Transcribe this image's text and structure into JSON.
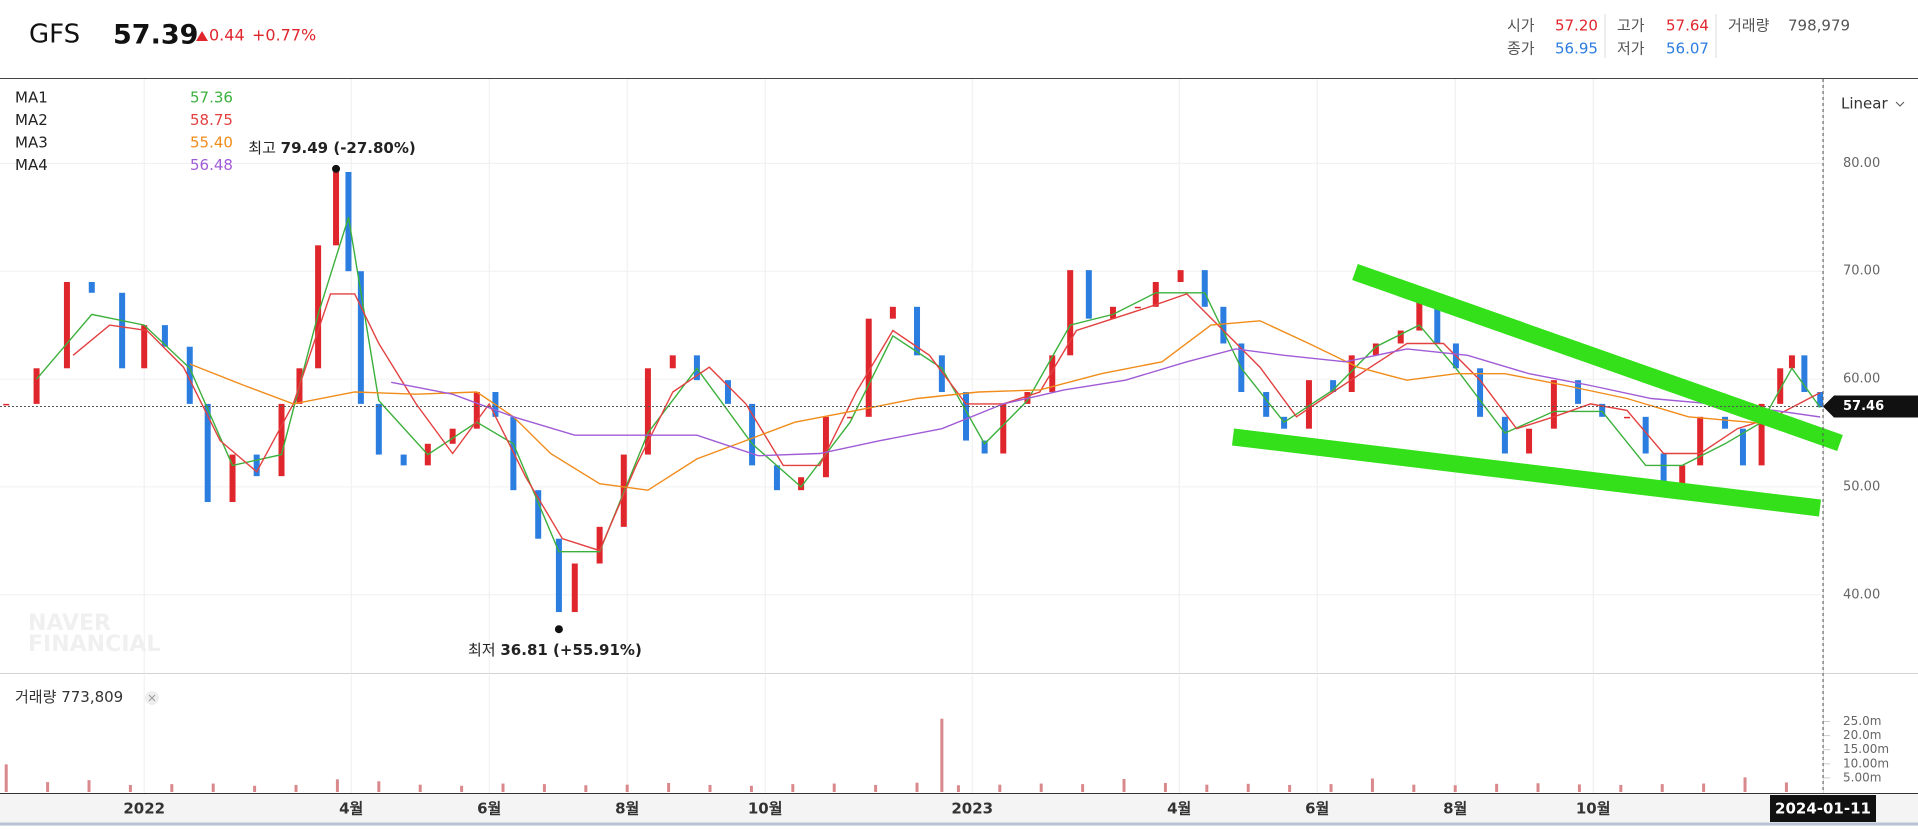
{
  "header": {
    "symbol": "GFS",
    "price": "57.39",
    "change": "0.44",
    "change_pct": "+0.77%",
    "stats": [
      {
        "label": "시가",
        "value": "57.20"
      },
      {
        "label": "고가",
        "value": "57.64"
      },
      {
        "label": "거래량",
        "value": "798,979"
      },
      {
        "label": "종가",
        "value": "56.95"
      },
      {
        "label": "저가",
        "value": "56.07"
      }
    ]
  },
  "chart_data": [
    {
      "type": "stock",
      "scale": "Linear",
      "grid": true,
      "watermark": [
        "NAVER",
        "FINANCIAL"
      ],
      "xlim": [
        -2.09,
        24.33
      ],
      "xticks": [
        0,
        3,
        5,
        7,
        9,
        12,
        15,
        17,
        19,
        21
      ],
      "ylim": [
        32.75,
        87.82
      ],
      "yticks": [
        {
          "value": 40,
          "label": "40.00"
        },
        {
          "value": 50,
          "label": "50.00"
        },
        {
          "value": 60,
          "label": "60.00"
        },
        {
          "value": 70,
          "label": "70.00"
        },
        {
          "value": 80,
          "label": "80.00"
        }
      ],
      "current_price": 57.46,
      "cursor": {
        "x": 24.33,
        "label": "2024-01-11"
      },
      "extremes": [
        {
          "label": "최고",
          "x": 2.78,
          "value": 79.49,
          "value_label": "79.49 (-27.80%)"
        },
        {
          "label": "최저",
          "x": 6.01,
          "value": 36.81,
          "value_label": "36.81 (+55.91%)"
        }
      ],
      "series": [
        {
          "type": "candles",
          "up_color": "#e0262d",
          "down_color": "#2b7de0",
          "x": [
            -2.0,
            -1.56,
            -1.12,
            -0.76,
            -0.32,
            0,
            0.3,
            0.66,
            0.92,
            1.28,
            1.63,
            1.99,
            2.25,
            2.52,
            2.78,
            2.96,
            3.14,
            3.4,
            3.76,
            4.11,
            4.47,
            4.82,
            5.09,
            5.35,
            5.71,
            6.01,
            6.24,
            6.6,
            6.95,
            7.3,
            7.66,
            8.01,
            8.46,
            8.81,
            9.17,
            9.52,
            9.88,
            10.23,
            10.5,
            10.85,
            11.2,
            11.56,
            11.91,
            12.18,
            12.45,
            12.8,
            13.16,
            13.42,
            13.69,
            14.04,
            14.4,
            14.66,
            15.02,
            15.37,
            15.64,
            15.9,
            16.26,
            16.52,
            16.88,
            17.23,
            17.5,
            17.85,
            18.21,
            18.48,
            18.74,
            19.01,
            19.36,
            19.72,
            20.07,
            20.43,
            20.78,
            21.13,
            21.49,
            21.76,
            22.02,
            22.29,
            22.55,
            22.91,
            23.17,
            23.44,
            23.71,
            23.88,
            24.06,
            24.29
          ],
          "values": [
            57.7,
            61,
            69,
            68,
            61,
            65,
            63,
            57.7,
            48.6,
            53,
            51,
            57.7,
            61,
            72.4,
            79.2,
            70,
            57.7,
            53,
            52,
            54,
            55.4,
            58.8,
            56.5,
            49.7,
            45.2,
            38.4,
            42.9,
            46.3,
            53,
            61,
            62.2,
            59.9,
            57.7,
            52,
            49.7,
            50.9,
            56.5,
            56.5,
            65.6,
            66.7,
            62.2,
            58.8,
            54.3,
            53.1,
            57.7,
            58.8,
            62.2,
            70.1,
            65.6,
            66.7,
            66.7,
            69,
            70.1,
            66.7,
            63.3,
            58.8,
            56.5,
            55.4,
            59.9,
            58.8,
            62.2,
            63.3,
            64.5,
            67.9,
            63.3,
            61,
            56.5,
            53.1,
            55.4,
            59.9,
            57.7,
            56.5,
            56.5,
            53.1,
            49.7,
            52,
            56.5,
            55.4,
            52,
            57.7,
            61,
            62.2,
            58.8,
            57.39
          ]
        },
        {
          "type": "line",
          "name": "MA1",
          "color": "#3cb03c",
          "last_label": "57.36",
          "x": [
            -1.56,
            -0.76,
            0,
            0.66,
            1.28,
            1.99,
            2.52,
            2.96,
            3.4,
            4.11,
            4.82,
            5.35,
            6.01,
            6.6,
            7.3,
            8.01,
            8.81,
            9.52,
            10.23,
            10.85,
            11.56,
            12.18,
            12.8,
            13.42,
            14.04,
            14.66,
            15.37,
            15.9,
            16.52,
            17.23,
            17.85,
            18.48,
            19.01,
            19.72,
            20.43,
            21.13,
            21.76,
            22.29,
            22.91,
            23.44,
            23.88,
            24.29
          ],
          "values": [
            60,
            66,
            65,
            61,
            52,
            53,
            66,
            75,
            58,
            53,
            56,
            54,
            44,
            44,
            55,
            61,
            54,
            50,
            56,
            64,
            61,
            54,
            58,
            65,
            66,
            68,
            68,
            61,
            56,
            59,
            63,
            65,
            61,
            55,
            57,
            57,
            52,
            52,
            54,
            56,
            61,
            57.36
          ]
        },
        {
          "type": "line",
          "name": "MA2",
          "color": "#e34040",
          "last_label": "58.75",
          "x": [
            -1.03,
            -0.5,
            0.04,
            0.57,
            1.1,
            1.63,
            2.16,
            2.7,
            3.05,
            3.4,
            3.94,
            4.47,
            5.0,
            5.53,
            6.06,
            6.6,
            7.13,
            7.66,
            8.19,
            8.72,
            9.26,
            9.79,
            10.32,
            10.85,
            11.38,
            11.91,
            12.45,
            12.98,
            13.51,
            14.04,
            14.57,
            15.11,
            15.64,
            16.17,
            16.7,
            17.23,
            17.77,
            18.3,
            18.83,
            19.36,
            19.89,
            20.43,
            20.96,
            21.49,
            22.02,
            22.55,
            23.09,
            23.62,
            24.29
          ],
          "values": [
            62.2,
            65.0,
            64.5,
            61.1,
            54.3,
            51.4,
            57.7,
            67.9,
            67.9,
            63.3,
            57.7,
            53.1,
            57.7,
            50.9,
            45.2,
            44.1,
            52.0,
            58.8,
            61.1,
            57.7,
            52.0,
            52.0,
            58.8,
            64.5,
            62.2,
            57.7,
            57.7,
            58.8,
            64.5,
            65.6,
            66.7,
            67.9,
            64.5,
            61.1,
            56.5,
            58.8,
            61.1,
            63.3,
            63.3,
            59.9,
            55.4,
            56.5,
            57.7,
            57.1,
            53.1,
            53.1,
            55.4,
            56.5,
            58.75
          ]
        },
        {
          "type": "line",
          "name": "MA3",
          "color": "#f08c1a",
          "last_label": "55.40",
          "x": [
            0.66,
            1.45,
            2.16,
            3.05,
            3.94,
            4.82,
            5.35,
            5.89,
            6.6,
            7.3,
            8.01,
            8.72,
            9.43,
            10.32,
            11.2,
            12.09,
            12.98,
            13.87,
            14.75,
            15.46,
            16.17,
            16.88,
            17.59,
            18.3,
            19.01,
            19.72,
            20.6,
            21.49,
            22.38,
            23.26,
            24.29
          ],
          "values": [
            61.4,
            59.4,
            57.7,
            58.8,
            58.6,
            58.8,
            56.5,
            53.1,
            50.3,
            49.7,
            52.6,
            54.3,
            56.0,
            57.1,
            58.2,
            58.8,
            59.0,
            60.5,
            61.6,
            65.0,
            65.4,
            63.3,
            61.1,
            59.9,
            60.5,
            60.5,
            59.4,
            58.2,
            56.5,
            56.0,
            55.4
          ]
        },
        {
          "type": "line",
          "name": "MA4",
          "color": "#a05cd6",
          "last_label": "56.48",
          "x": [
            3.58,
            4.47,
            5.35,
            6.24,
            7.13,
            8.01,
            8.9,
            9.79,
            10.67,
            11.56,
            12.45,
            13.33,
            14.22,
            15.11,
            15.82,
            16.52,
            17.41,
            18.3,
            19.18,
            20.07,
            20.96,
            21.84,
            22.73,
            23.62,
            24.29
          ],
          "values": [
            59.7,
            58.6,
            56.5,
            54.8,
            54.8,
            54.8,
            52.9,
            53.1,
            54.3,
            55.4,
            57.7,
            59.0,
            59.9,
            61.6,
            62.8,
            62.2,
            61.6,
            62.8,
            62.2,
            60.5,
            59.4,
            58.2,
            57.7,
            57.1,
            56.48
          ]
        }
      ]
    },
    {
      "type": "bar",
      "title": "거래량",
      "last_label": "773,809",
      "color": "#d9898c",
      "xlim": [
        -2.09,
        24.33
      ],
      "xticks": [
        {
          "value": 0,
          "label": "2022"
        },
        {
          "value": 3,
          "label": "4월"
        },
        {
          "value": 5,
          "label": "6월"
        },
        {
          "value": 7,
          "label": "8월"
        },
        {
          "value": 9,
          "label": "10월"
        },
        {
          "value": 12,
          "label": "2023"
        },
        {
          "value": 15,
          "label": "4월"
        },
        {
          "value": 17,
          "label": "6월"
        },
        {
          "value": 19,
          "label": "8월"
        },
        {
          "value": 21,
          "label": "10월"
        }
      ],
      "ylim": [
        0,
        41.5
      ],
      "yticks": [
        {
          "value": 5,
          "label": "5.00m"
        },
        {
          "value": 10,
          "label": "10.00m"
        },
        {
          "value": 15,
          "label": "15.00m"
        },
        {
          "value": 20,
          "label": "20.0m"
        },
        {
          "value": 25,
          "label": "25.0m"
        }
      ],
      "x": [
        -2.0,
        -1.4,
        -0.8,
        -0.2,
        0.4,
        1.0,
        1.6,
        2.2,
        2.8,
        3.4,
        4.0,
        4.6,
        5.2,
        5.8,
        6.4,
        7.0,
        7.6,
        8.2,
        8.8,
        9.4,
        10.0,
        10.6,
        11.2,
        11.56,
        11.8,
        12.4,
        13.0,
        13.6,
        14.2,
        14.8,
        15.4,
        16.0,
        16.6,
        17.2,
        17.8,
        18.4,
        19.0,
        19.6,
        20.2,
        20.8,
        21.4,
        22.0,
        22.6,
        23.2,
        23.8
      ],
      "values": [
        9.8,
        3.5,
        4.2,
        2.5,
        2.8,
        3.0,
        2.2,
        2.5,
        4.5,
        3.8,
        2.6,
        2.2,
        3.0,
        2.8,
        2.4,
        2.6,
        3.2,
        2.5,
        2.2,
        2.8,
        3.0,
        2.5,
        3.3,
        26.0,
        2.4,
        2.6,
        3.0,
        2.8,
        4.6,
        3.2,
        2.6,
        2.9,
        2.5,
        2.8,
        4.8,
        2.6,
        2.4,
        2.9,
        3.1,
        2.7,
        2.5,
        2.8,
        3.0,
        5.2,
        3.4
      ]
    }
  ]
}
